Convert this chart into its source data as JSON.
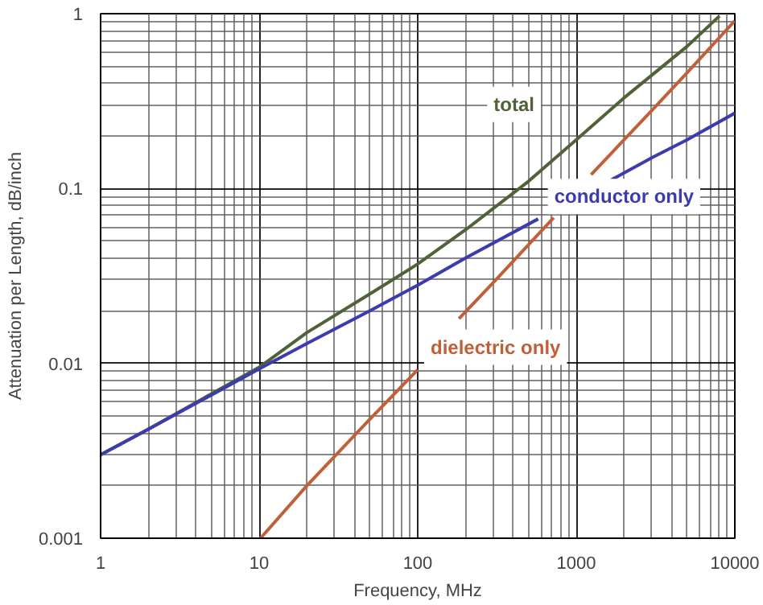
{
  "chart_data": {
    "type": "line",
    "xlabel": "Frequency, MHz",
    "ylabel": "Attenuation per Length, dB/inch",
    "log": "xy",
    "grid": true,
    "marker": "none",
    "line_style": "solid",
    "xlim": [
      1,
      10000
    ],
    "ylim": [
      0.001,
      1
    ],
    "xticks": [
      1,
      10,
      100,
      1000,
      10000
    ],
    "yticks": [
      0.001,
      0.01,
      0.1,
      1
    ],
    "series": [
      {
        "name": "total",
        "color": "#4f6238",
        "x": [
          1,
          2,
          5,
          10,
          20,
          50,
          100,
          200,
          500,
          1000,
          2000,
          5000,
          8000
        ],
        "values": [
          0.003,
          0.0042,
          0.0067,
          0.0095,
          0.015,
          0.025,
          0.037,
          0.058,
          0.11,
          0.19,
          0.33,
          0.65,
          0.97
        ]
      },
      {
        "name": "conductor only",
        "color": "#3c3cae",
        "x": [
          1,
          2,
          5,
          10,
          20,
          50,
          100,
          200,
          575,
          1000,
          1660,
          3000,
          5000,
          10000
        ],
        "values": [
          0.003,
          0.0042,
          0.0066,
          0.0093,
          0.013,
          0.02,
          0.028,
          0.04,
          0.067,
          null,
          0.112,
          0.15,
          0.19,
          0.27
        ]
      },
      {
        "name": "dielectric only",
        "color": "#c0603a",
        "x": [
          10.2,
          20,
          50,
          100,
          140,
          182,
          300,
          720,
          1000,
          1240,
          3000,
          5000,
          10000
        ],
        "values": [
          0.001,
          0.002,
          0.0048,
          0.0092,
          null,
          0.018,
          0.029,
          0.068,
          null,
          0.12,
          0.28,
          0.46,
          0.91
        ]
      }
    ]
  }
}
